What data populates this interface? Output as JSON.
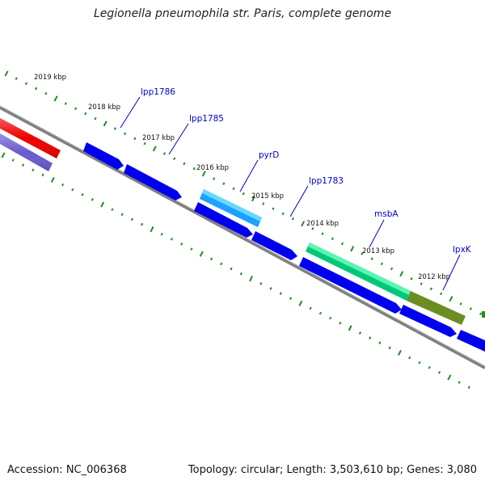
{
  "title": "Legionella pneumophila str. Paris, complete genome",
  "footer": {
    "accession": "Accession: NC_006368",
    "summary": "Topology: circular; Length: 3,503,610 bp; Genes: 3,080"
  },
  "colors": {
    "backbone": "#808080",
    "ticks": "#228b22",
    "gene_default": "#0000ee",
    "label_line": "#0000cc",
    "label_text": "#0000cc"
  },
  "kbp_labels": [
    "2019 kbp",
    "2018 kbp",
    "2017 kbp",
    "2016 kbp",
    "2015 kbp",
    "2014 kbp",
    "2013 kbp",
    "2012 kbp"
  ],
  "gene_labels": [
    "lpp1786",
    "lpp1785",
    "pyrD",
    "lpp1783",
    "msbA",
    "lpxK"
  ],
  "features": [
    {
      "track": "outer",
      "color": "#ee0000"
    },
    {
      "track": "inner",
      "color": "#6a5acd"
    },
    {
      "track": "outer",
      "color": "#0000ee",
      "label": "lpp1786"
    },
    {
      "track": "outer",
      "color": "#0000ee",
      "label": "lpp1785"
    },
    {
      "track": "outer",
      "color": "#1e90ff",
      "label": "pyrD"
    },
    {
      "track": "outer",
      "color": "#0000ee",
      "label": "lpp1783"
    },
    {
      "track": "outer",
      "color": "#00c878",
      "label": "msbA"
    },
    {
      "track": "outer",
      "color": "#6b8e23",
      "label": "lpxK"
    },
    {
      "track": "outer",
      "color": "#0000ee"
    },
    {
      "track": "outer",
      "color": "#0000ee"
    },
    {
      "track": "outer",
      "color": "#0000ee"
    }
  ]
}
